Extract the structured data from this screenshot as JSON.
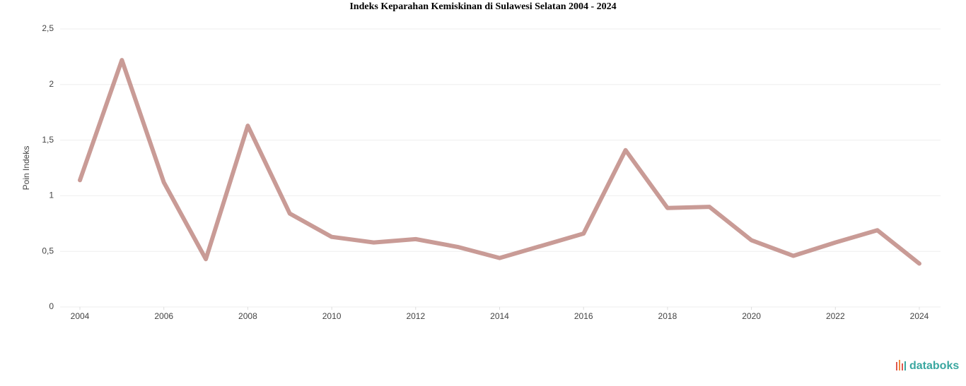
{
  "chart_data": {
    "type": "line",
    "title": "Indeks Keparahan Kemiskinan di Sulawesi Selatan 2004 - 2024",
    "y_label": "Poin Indeks",
    "x": [
      2004,
      2005,
      2006,
      2007,
      2008,
      2009,
      2010,
      2011,
      2012,
      2013,
      2014,
      2015,
      2016,
      2017,
      2018,
      2019,
      2020,
      2021,
      2022,
      2023,
      2024
    ],
    "series": [
      {
        "name": "Indeks Keparahan Kemiskinan",
        "color": "#c08a84",
        "values": [
          1.14,
          2.22,
          1.12,
          0.43,
          1.63,
          0.84,
          0.63,
          0.58,
          0.61,
          0.54,
          0.44,
          0.55,
          0.66,
          1.41,
          0.89,
          0.9,
          0.6,
          0.46,
          0.58,
          0.69,
          0.39
        ]
      }
    ],
    "xlim": [
      2004,
      2024
    ],
    "xticks": [
      2004,
      2006,
      2008,
      2010,
      2012,
      2014,
      2016,
      2018,
      2020,
      2022,
      2024
    ],
    "ylim": [
      0,
      2.5
    ],
    "yticks": [
      0,
      {
        "value": 0.5,
        "label": "0,5"
      },
      1,
      {
        "value": 1.5,
        "label": "1,5"
      },
      2,
      {
        "value": 2.5,
        "label": "2,5"
      }
    ],
    "grid": true,
    "source": "databoks"
  }
}
